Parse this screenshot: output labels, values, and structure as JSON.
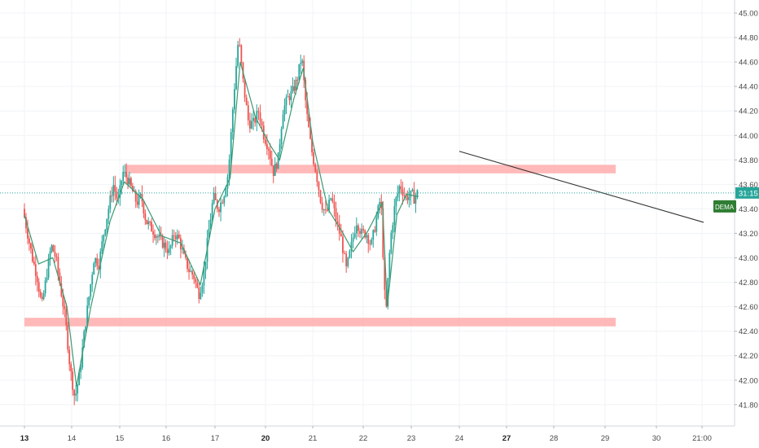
{
  "chart_data": {
    "type": "candlestick",
    "price_axis": {
      "ylim": [
        41.65,
        45.15
      ],
      "ticks": [
        "45.00",
        "44.80",
        "44.60",
        "44.40",
        "44.20",
        "44.00",
        "43.80",
        "43.60",
        "43.40",
        "43.20",
        "43.00",
        "42.80",
        "42.60",
        "42.40",
        "42.20",
        "42.00",
        "41.80"
      ],
      "current_price_label": "31:15",
      "indicator_label": "DEMA"
    },
    "time_axis": {
      "ticks": [
        {
          "label": "13",
          "bold": true
        },
        {
          "label": "14",
          "bold": false
        },
        {
          "label": "15",
          "bold": false
        },
        {
          "label": "16",
          "bold": false
        },
        {
          "label": "17",
          "bold": false
        },
        {
          "label": "20",
          "bold": true
        },
        {
          "label": "21",
          "bold": false
        },
        {
          "label": "22",
          "bold": false
        },
        {
          "label": "23",
          "bold": false
        },
        {
          "label": "24",
          "bold": false
        },
        {
          "label": "27",
          "bold": true
        },
        {
          "label": "28",
          "bold": false
        },
        {
          "label": "29",
          "bold": false
        },
        {
          "label": "30",
          "bold": false
        },
        {
          "label": "21:00",
          "bold": false
        }
      ]
    },
    "current_price": 43.53,
    "grid": true,
    "support_resistance_zones": [
      {
        "from_day": "15",
        "to_day": "29",
        "y_low": 43.69,
        "y_high": 43.76
      },
      {
        "from_day": "13",
        "to_day": "29",
        "y_low": 42.44,
        "y_high": 42.51
      }
    ],
    "trendline": {
      "from": [
        "24",
        43.87
      ],
      "to": [
        "30",
        43.29
      ]
    },
    "price_path": [
      [
        0.0,
        43.4
      ],
      [
        0.1,
        43.2
      ],
      [
        0.2,
        43.0
      ],
      [
        0.3,
        42.85
      ],
      [
        0.4,
        42.6
      ],
      [
        0.5,
        42.85
      ],
      [
        0.6,
        43.1
      ],
      [
        0.7,
        43.0
      ],
      [
        0.8,
        42.75
      ],
      [
        0.9,
        42.5
      ],
      [
        1.0,
        42.1
      ],
      [
        1.1,
        41.85
      ],
      [
        1.2,
        42.05
      ],
      [
        1.3,
        42.4
      ],
      [
        1.4,
        42.7
      ],
      [
        1.5,
        43.0
      ],
      [
        1.6,
        42.95
      ],
      [
        1.7,
        43.2
      ],
      [
        1.8,
        43.4
      ],
      [
        1.9,
        43.6
      ],
      [
        2.0,
        43.45
      ],
      [
        2.1,
        43.7
      ],
      [
        2.2,
        43.65
      ],
      [
        2.3,
        43.55
      ],
      [
        2.4,
        43.45
      ],
      [
        2.5,
        43.5
      ],
      [
        2.6,
        43.3
      ],
      [
        2.7,
        43.25
      ],
      [
        2.8,
        43.2
      ],
      [
        2.9,
        43.15
      ],
      [
        3.0,
        43.1
      ],
      [
        3.1,
        43.05
      ],
      [
        3.2,
        43.2
      ],
      [
        3.3,
        43.15
      ],
      [
        3.4,
        43.0
      ],
      [
        3.5,
        42.9
      ],
      [
        3.6,
        42.85
      ],
      [
        3.7,
        42.7
      ],
      [
        3.8,
        42.85
      ],
      [
        3.9,
        43.2
      ],
      [
        4.0,
        43.5
      ],
      [
        4.1,
        43.4
      ],
      [
        4.2,
        43.5
      ],
      [
        4.3,
        43.7
      ],
      [
        4.4,
        44.3
      ],
      [
        4.5,
        44.8
      ],
      [
        4.6,
        44.4
      ],
      [
        4.7,
        44.1
      ],
      [
        4.8,
        44.1
      ],
      [
        4.9,
        44.2
      ],
      [
        5.0,
        44.0
      ],
      [
        5.1,
        43.9
      ],
      [
        5.2,
        43.7
      ],
      [
        5.3,
        43.8
      ],
      [
        5.4,
        44.2
      ],
      [
        5.5,
        44.3
      ],
      [
        5.6,
        44.35
      ],
      [
        5.7,
        44.45
      ],
      [
        5.8,
        44.65
      ],
      [
        5.9,
        44.2
      ],
      [
        6.0,
        43.9
      ],
      [
        6.1,
        43.7
      ],
      [
        6.2,
        43.45
      ],
      [
        6.3,
        43.35
      ],
      [
        6.4,
        43.5
      ],
      [
        6.5,
        43.3
      ],
      [
        6.6,
        43.15
      ],
      [
        6.7,
        42.9
      ],
      [
        6.8,
        43.1
      ],
      [
        6.9,
        43.3
      ],
      [
        7.0,
        43.2
      ],
      [
        7.1,
        43.2
      ],
      [
        7.2,
        43.1
      ],
      [
        7.3,
        43.3
      ],
      [
        7.4,
        43.5
      ],
      [
        7.5,
        42.5
      ],
      [
        7.6,
        43.15
      ],
      [
        7.7,
        43.45
      ],
      [
        7.8,
        43.6
      ],
      [
        7.9,
        43.5
      ],
      [
        8.0,
        43.5
      ],
      [
        8.05,
        43.52
      ],
      [
        8.1,
        43.48
      ],
      [
        8.15,
        43.53
      ]
    ],
    "dema_path": [
      [
        0.0,
        43.35
      ],
      [
        0.3,
        42.95
      ],
      [
        0.6,
        43.0
      ],
      [
        0.9,
        42.6
      ],
      [
        1.1,
        41.95
      ],
      [
        1.4,
        42.6
      ],
      [
        1.8,
        43.3
      ],
      [
        2.1,
        43.62
      ],
      [
        2.5,
        43.48
      ],
      [
        2.9,
        43.18
      ],
      [
        3.3,
        43.12
      ],
      [
        3.7,
        42.78
      ],
      [
        4.0,
        43.4
      ],
      [
        4.3,
        43.65
      ],
      [
        4.5,
        44.6
      ],
      [
        4.8,
        44.15
      ],
      [
        5.1,
        43.92
      ],
      [
        5.3,
        43.8
      ],
      [
        5.6,
        44.3
      ],
      [
        5.8,
        44.55
      ],
      [
        6.0,
        43.95
      ],
      [
        6.3,
        43.4
      ],
      [
        6.6,
        43.2
      ],
      [
        6.8,
        43.05
      ],
      [
        7.1,
        43.22
      ],
      [
        7.4,
        43.45
      ],
      [
        7.5,
        42.6
      ],
      [
        7.7,
        43.35
      ],
      [
        7.9,
        43.52
      ],
      [
        8.15,
        43.5
      ]
    ]
  }
}
